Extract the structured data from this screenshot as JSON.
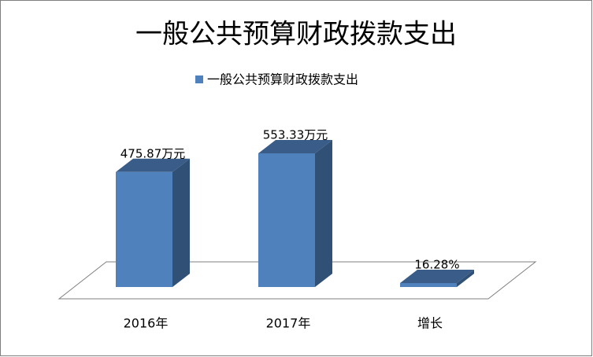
{
  "chart_data": {
    "type": "bar",
    "title": "一般公共预算财政拨款支出",
    "categories": [
      "2016年",
      "2017年",
      "增长"
    ],
    "series": [
      {
        "name": "一般公共预算财政拨款支出",
        "color": "#4f81bd",
        "values": [
          475.87,
          553.33,
          16.28
        ],
        "value_labels": [
          "475.87万元",
          "553.33万元",
          "16.28%"
        ]
      }
    ],
    "legend": "top"
  }
}
